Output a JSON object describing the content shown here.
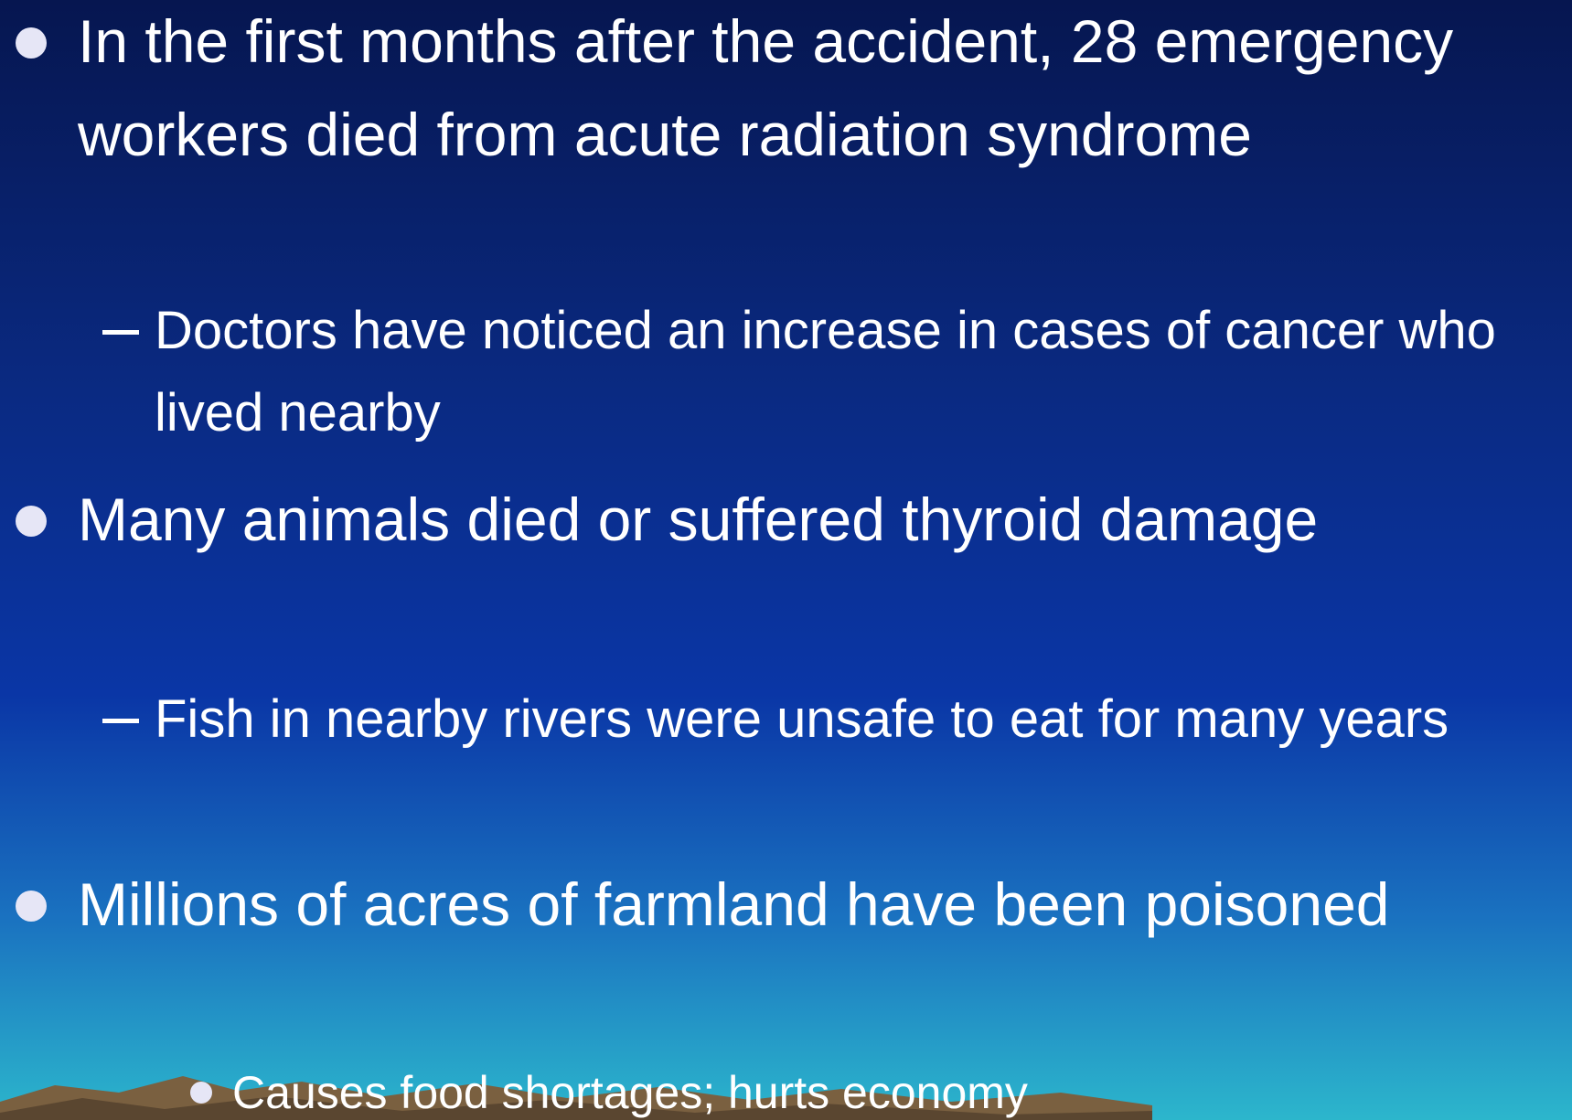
{
  "bullets": [
    {
      "text": "In the first months after the accident, 28 emergency workers died from acute radiation syndrome",
      "subitems": [
        {
          "text": "Doctors have noticed an increase in cases of cancer who lived nearby"
        }
      ]
    },
    {
      "text": "Many animals died or suffered thyroid damage",
      "subitems": [
        {
          "text": "Fish in nearby rivers were unsafe to eat for many years"
        }
      ]
    },
    {
      "text": "Millions of acres of farmland have been poisoned",
      "subitems": [
        {
          "text": "",
          "subitems": [
            {
              "text": "Causes food shortages; hurts economy"
            }
          ]
        }
      ]
    }
  ]
}
